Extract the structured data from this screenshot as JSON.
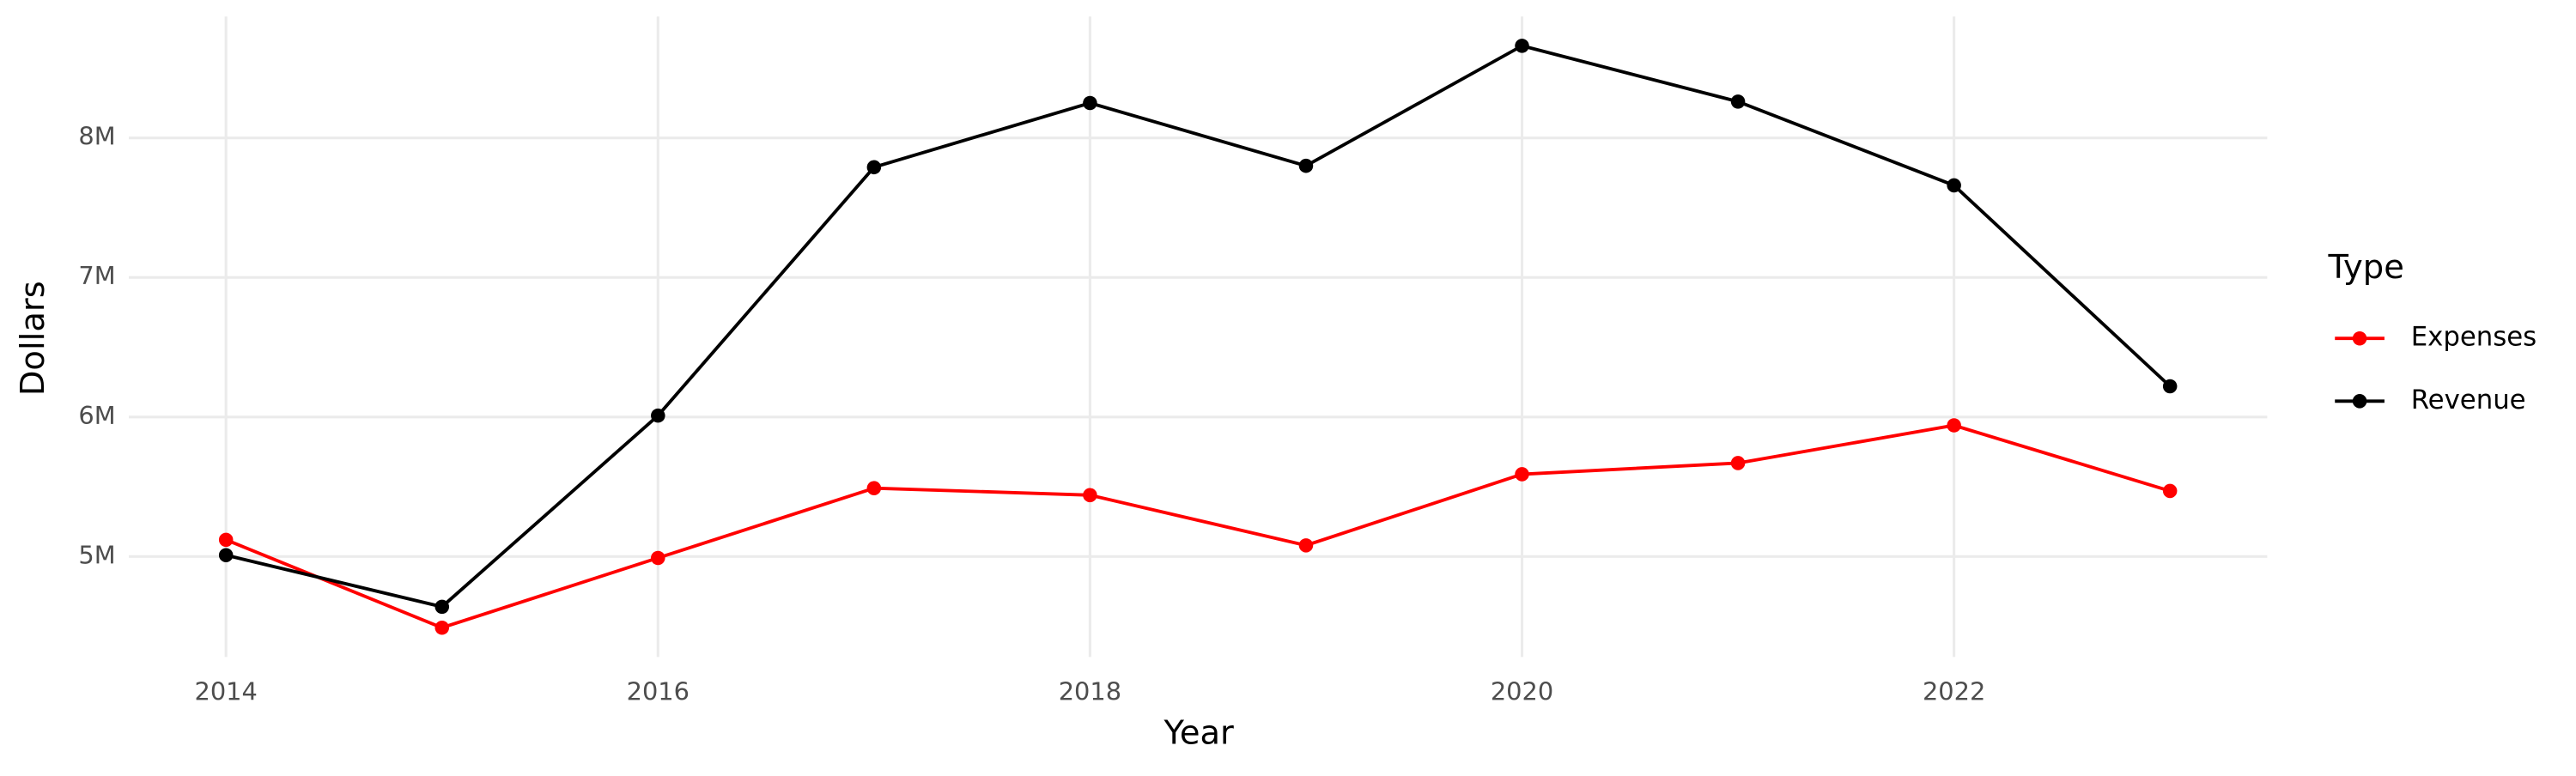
{
  "chart_data": {
    "type": "line",
    "x_label": "Year",
    "y_label": "Dollars",
    "x": [
      2014,
      2015,
      2016,
      2017,
      2018,
      2019,
      2020,
      2021,
      2022,
      2023
    ],
    "series": [
      {
        "name": "Expenses",
        "color": "#ff0000",
        "values": [
          5120000,
          4490000,
          4990000,
          5490000,
          5440000,
          5080000,
          5590000,
          5670000,
          5940000,
          5470000
        ]
      },
      {
        "name": "Revenue",
        "color": "#000000",
        "values": [
          5010000,
          4640000,
          6010000,
          7790000,
          8250000,
          7800000,
          8660000,
          8260000,
          7660000,
          6220000
        ]
      }
    ],
    "xlim": [
      2013.55,
      2023.45
    ],
    "xticks": [
      2014,
      2016,
      2018,
      2020,
      2022
    ],
    "ylim": [
      4280000,
      8870000
    ],
    "yticks": [
      {
        "value": 5000000,
        "label": "5M"
      },
      {
        "value": 6000000,
        "label": "6M"
      },
      {
        "value": 7000000,
        "label": "7M"
      },
      {
        "value": 8000000,
        "label": "8M"
      }
    ],
    "grid": true,
    "legend": {
      "title": "Type",
      "position": "right"
    }
  }
}
